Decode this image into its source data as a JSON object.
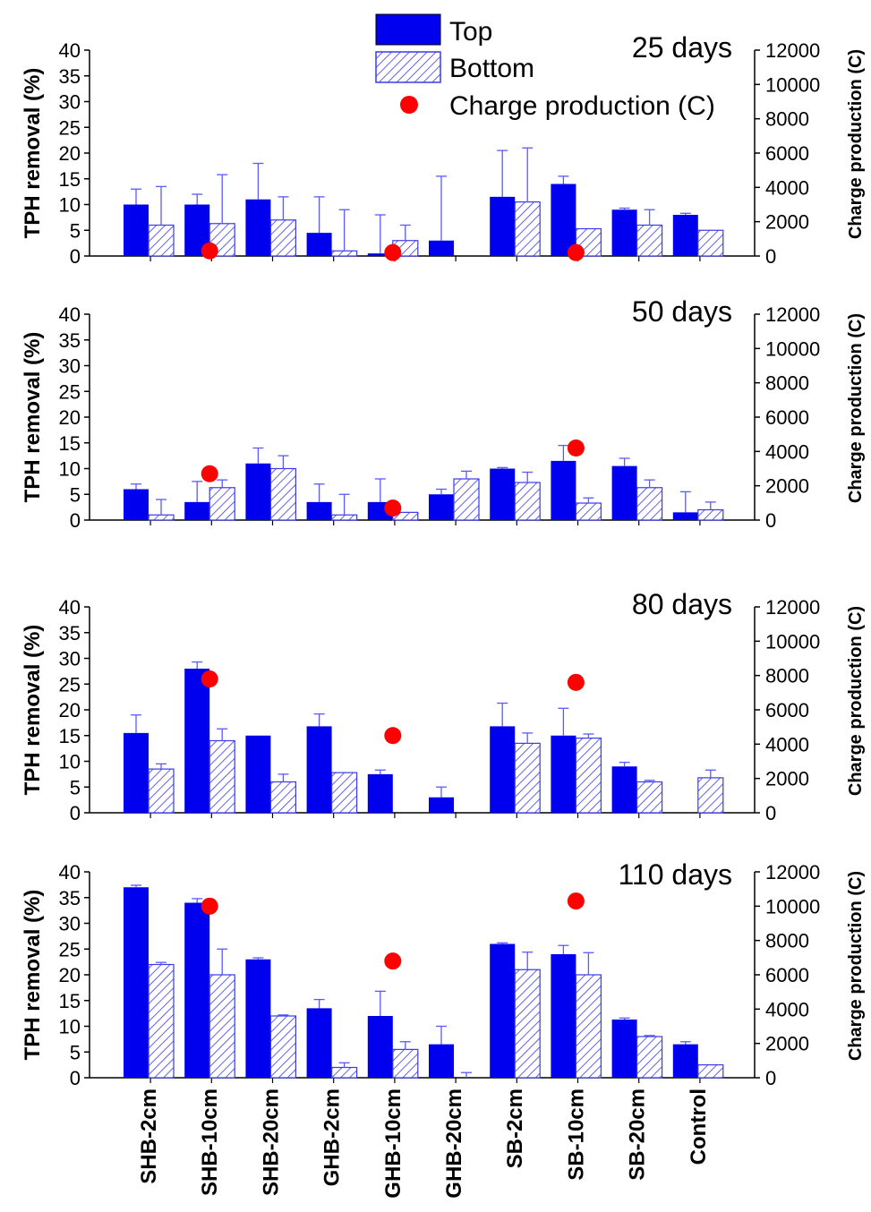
{
  "legend": {
    "top": "Top",
    "bottom": "Bottom",
    "charge": "Charge production (C)"
  },
  "colors": {
    "top": "#0000ee",
    "bottom_hatch": "#3a3ae8",
    "charge": "#ff0000",
    "errorbar": "#5a5aff"
  },
  "chart_data": [
    {
      "type": "bar",
      "title": "25 days",
      "ylabel": "TPH removal (%)",
      "y2label": "Charge production (C)",
      "ylim": [
        0,
        40
      ],
      "y2lim": [
        0,
        12000
      ],
      "yticks": [
        0,
        5,
        10,
        15,
        20,
        25,
        30,
        35,
        40
      ],
      "y2ticks": [
        0,
        2000,
        4000,
        6000,
        8000,
        10000,
        12000
      ],
      "categories": [
        "SHB-2cm",
        "SHB-10cm",
        "SHB-20cm",
        "GHB-2cm",
        "GHB-10cm",
        "GHB-20cm",
        "SB-2cm",
        "SB-10cm",
        "SB-20cm",
        "Control"
      ],
      "series": [
        {
          "name": "Top",
          "values": [
            10,
            10,
            11,
            4.5,
            0.5,
            3,
            11.5,
            14,
            9,
            8
          ],
          "errors": [
            3,
            2,
            7,
            7,
            7.5,
            12.5,
            9,
            1.5,
            0.3,
            0.3
          ]
        },
        {
          "name": "Bottom",
          "values": [
            6,
            6.3,
            7,
            1,
            3,
            0,
            10.5,
            5.3,
            6,
            5
          ],
          "errors": [
            7.5,
            9.5,
            4.5,
            8,
            3,
            0,
            10.5,
            0,
            3,
            0
          ]
        },
        {
          "name": "Charge production (C)",
          "values": [
            null,
            300,
            null,
            null,
            200,
            null,
            null,
            200,
            null,
            null
          ]
        }
      ]
    },
    {
      "type": "bar",
      "title": "50 days",
      "ylabel": "TPH removal (%)",
      "y2label": "Charge production (C)",
      "ylim": [
        0,
        40
      ],
      "y2lim": [
        0,
        12000
      ],
      "yticks": [
        0,
        5,
        10,
        15,
        20,
        25,
        30,
        35,
        40
      ],
      "y2ticks": [
        0,
        2000,
        4000,
        6000,
        8000,
        10000,
        12000
      ],
      "categories": [
        "SHB-2cm",
        "SHB-10cm",
        "SHB-20cm",
        "GHB-2cm",
        "GHB-10cm",
        "GHB-20cm",
        "SB-2cm",
        "SB-10cm",
        "SB-20cm",
        "Control"
      ],
      "series": [
        {
          "name": "Top",
          "values": [
            6,
            3.5,
            11,
            3.5,
            3.5,
            5,
            10,
            11.5,
            10.5,
            1.5
          ],
          "errors": [
            1,
            4,
            3,
            3.5,
            4.5,
            1,
            0.2,
            3,
            1.5,
            4
          ]
        },
        {
          "name": "Bottom",
          "values": [
            1,
            6.3,
            10,
            1,
            1.5,
            8,
            7.3,
            3.3,
            6.3,
            2
          ],
          "errors": [
            3,
            1.5,
            2.5,
            4,
            0,
            1.5,
            2,
            1,
            1.5,
            1.5
          ]
        },
        {
          "name": "Charge production (C)",
          "values": [
            null,
            2700,
            null,
            null,
            700,
            null,
            null,
            4200,
            null,
            null
          ]
        }
      ]
    },
    {
      "type": "bar",
      "title": "80 days",
      "ylabel": "TPH removal (%)",
      "y2label": "Charge production (C)",
      "ylim": [
        0,
        40
      ],
      "y2lim": [
        0,
        12000
      ],
      "yticks": [
        0,
        5,
        10,
        15,
        20,
        25,
        30,
        35,
        40
      ],
      "y2ticks": [
        0,
        2000,
        4000,
        6000,
        8000,
        10000,
        12000
      ],
      "categories": [
        "SHB-2cm",
        "SHB-10cm",
        "SHB-20cm",
        "GHB-2cm",
        "GHB-10cm",
        "GHB-20cm",
        "SB-2cm",
        "SB-10cm",
        "SB-20cm",
        "Control"
      ],
      "series": [
        {
          "name": "Top",
          "values": [
            15.5,
            28,
            15,
            16.8,
            7.5,
            3,
            16.8,
            15,
            9,
            0
          ],
          "errors": [
            3.5,
            1.3,
            0,
            2.4,
            0.8,
            2,
            4.5,
            5.3,
            0.8,
            0
          ]
        },
        {
          "name": "Bottom",
          "values": [
            8.5,
            14,
            6,
            7.8,
            0,
            0,
            13.5,
            14.5,
            6,
            6.8
          ],
          "errors": [
            1,
            2.3,
            1.5,
            0,
            0,
            0,
            2,
            0.8,
            0.3,
            1.5
          ]
        },
        {
          "name": "Charge production (C)",
          "values": [
            null,
            7800,
            null,
            null,
            4500,
            null,
            null,
            7600,
            null,
            null
          ]
        }
      ]
    },
    {
      "type": "bar",
      "title": "110 days",
      "ylabel": "TPH removal (%)",
      "y2label": "Charge production (C)",
      "ylim": [
        0,
        40
      ],
      "y2lim": [
        0,
        12000
      ],
      "yticks": [
        0,
        5,
        10,
        15,
        20,
        25,
        30,
        35,
        40
      ],
      "y2ticks": [
        0,
        2000,
        4000,
        6000,
        8000,
        10000,
        12000
      ],
      "categories": [
        "SHB-2cm",
        "SHB-10cm",
        "SHB-20cm",
        "GHB-2cm",
        "GHB-10cm",
        "GHB-20cm",
        "SB-2cm",
        "SB-10cm",
        "SB-20cm",
        "Control"
      ],
      "series": [
        {
          "name": "Top",
          "values": [
            37,
            34,
            23,
            13.5,
            12,
            6.5,
            26,
            24,
            11.3,
            6.5
          ],
          "errors": [
            0.4,
            0.8,
            0.3,
            1.7,
            4.8,
            3.5,
            0.2,
            1.7,
            0.3,
            0.5
          ]
        },
        {
          "name": "Bottom",
          "values": [
            22,
            20,
            12,
            2,
            5.5,
            0,
            21,
            20,
            8,
            2.5
          ],
          "errors": [
            0.4,
            5,
            0.2,
            0.9,
            1.5,
            1,
            3.4,
            4.3,
            0.2,
            0
          ]
        },
        {
          "name": "Charge production (C)",
          "values": [
            null,
            10000,
            null,
            null,
            6800,
            null,
            null,
            10300,
            null,
            null
          ]
        }
      ]
    }
  ]
}
